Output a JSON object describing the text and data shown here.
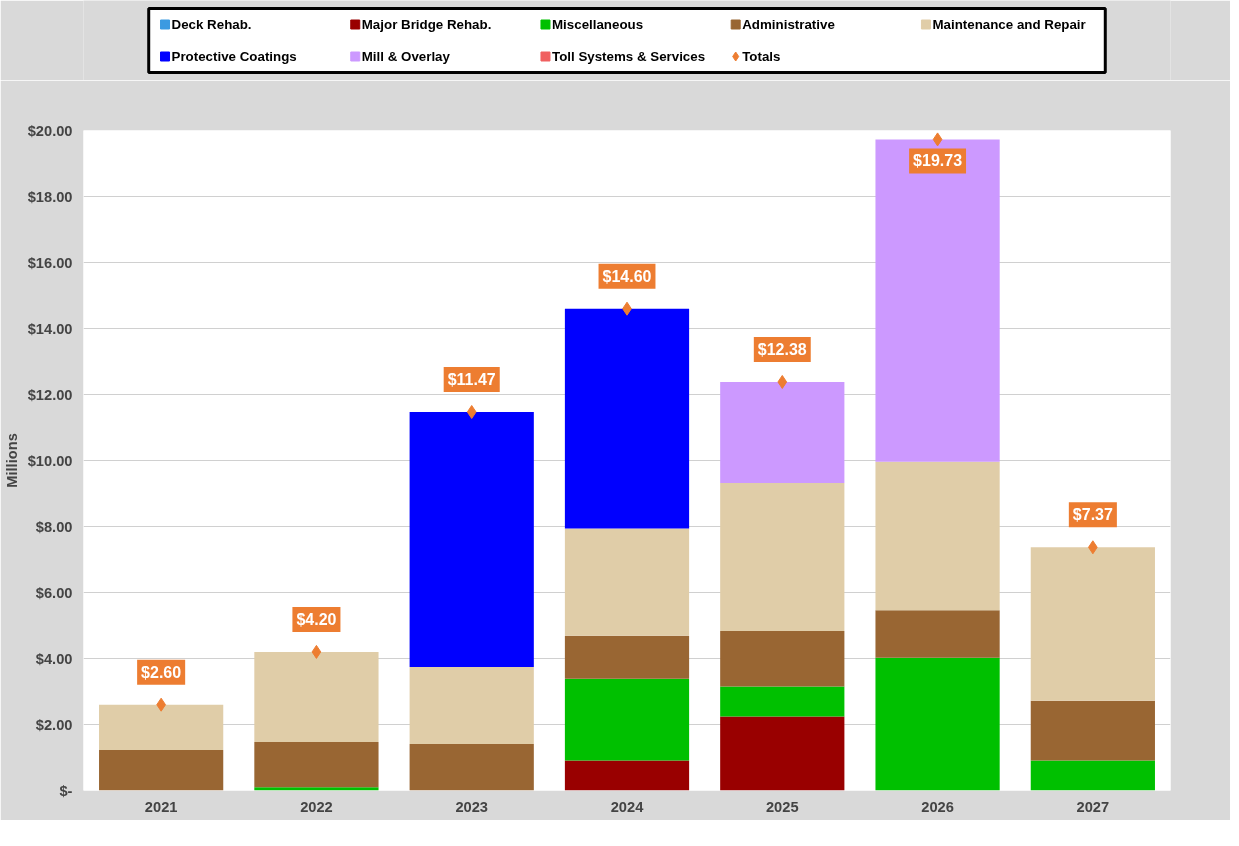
{
  "chart_data": {
    "type": "bar",
    "stacked": true,
    "ylabel": "Millions",
    "categories": [
      "2021",
      "2022",
      "2023",
      "2024",
      "2025",
      "2026",
      "2027"
    ],
    "series": [
      {
        "name": "Deck Rehab.",
        "color": "#3b9ae1",
        "values": [
          null,
          null,
          null,
          null,
          null,
          null,
          null
        ]
      },
      {
        "name": "Major Bridge Rehab.",
        "color": "#990000",
        "values": [
          null,
          null,
          null,
          0.91,
          2.24,
          null,
          null
        ]
      },
      {
        "name": "Miscellaneous",
        "color": "#00c000",
        "values": [
          null,
          0.1,
          null,
          2.48,
          0.91,
          4.02,
          0.91
        ]
      },
      {
        "name": "Administrative",
        "color": "#996633",
        "values": [
          1.23,
          1.37,
          1.41,
          1.3,
          1.68,
          1.44,
          1.81
        ]
      },
      {
        "name": "Maintenance and Repair",
        "color": "#e0cda8",
        "values": [
          1.37,
          2.73,
          2.33,
          3.25,
          4.49,
          4.5,
          4.65
        ]
      },
      {
        "name": "Protective Coatings",
        "color": "#0000ff",
        "values": [
          null,
          null,
          7.73,
          6.66,
          null,
          null,
          null
        ]
      },
      {
        "name": "Mill & Overlay",
        "color": "#cc99ff",
        "values": [
          null,
          null,
          null,
          null,
          3.06,
          9.77,
          null
        ]
      },
      {
        "name": "Toll Systems & Services",
        "color": "#f06060",
        "values": [
          null,
          null,
          null,
          null,
          null,
          null,
          null
        ]
      },
      {
        "name": "Totals",
        "type": "scatter",
        "marker": "diamond",
        "color": "#ed7d31",
        "values": [
          2.6,
          4.2,
          11.47,
          14.6,
          12.38,
          19.73,
          7.37
        ],
        "value_labels": [
          "$2.60",
          "$4.20",
          "$11.47",
          "$14.60",
          "$12.38",
          "$19.73",
          "$7.37"
        ]
      }
    ],
    "ylim": [
      0,
      20
    ],
    "yticks": [
      {
        "value": 0,
        "label": "$-"
      },
      {
        "value": 2,
        "label": "$2.00"
      },
      {
        "value": 4,
        "label": "$4.00"
      },
      {
        "value": 6,
        "label": "$6.00"
      },
      {
        "value": 8,
        "label": "$8.00"
      },
      {
        "value": 10,
        "label": "$10.00"
      },
      {
        "value": 12,
        "label": "$12.00"
      },
      {
        "value": 14,
        "label": "$14.00"
      },
      {
        "value": 16,
        "label": "$16.00"
      },
      {
        "value": 18,
        "label": "$18.00"
      },
      {
        "value": 20,
        "label": "$20.00"
      }
    ],
    "grid": "y",
    "legend": "top"
  }
}
